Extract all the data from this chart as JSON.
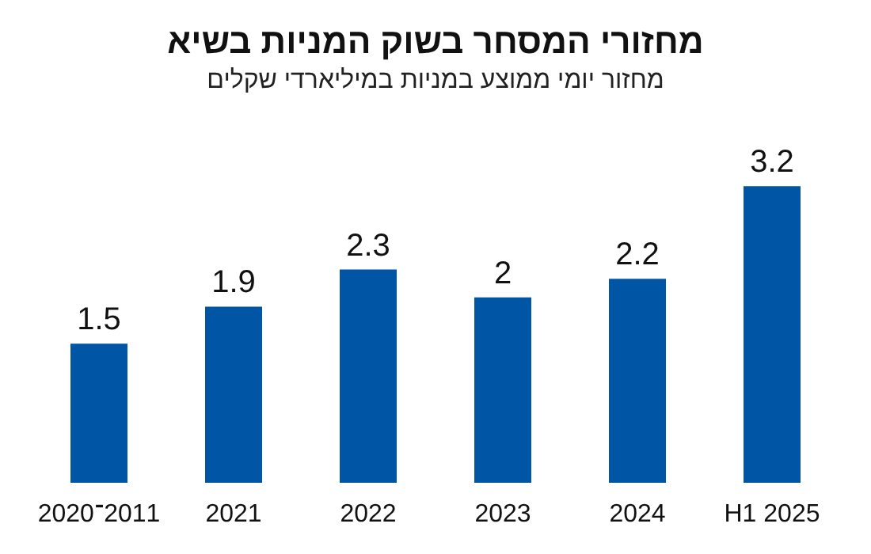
{
  "chart_data": {
    "type": "bar",
    "title": "מחזורי המסחר בשוק המניות בשיא",
    "subtitle": "מחזור יומי ממוצע במניות במיליארדי שקלים",
    "categories": [
      "2020־2011",
      "2021",
      "2022",
      "2023",
      "2024",
      "H1 2025"
    ],
    "values": [
      1.5,
      1.9,
      2.3,
      2,
      2.2,
      3.2
    ],
    "color": "#0055a5",
    "data_labels": true
  }
}
